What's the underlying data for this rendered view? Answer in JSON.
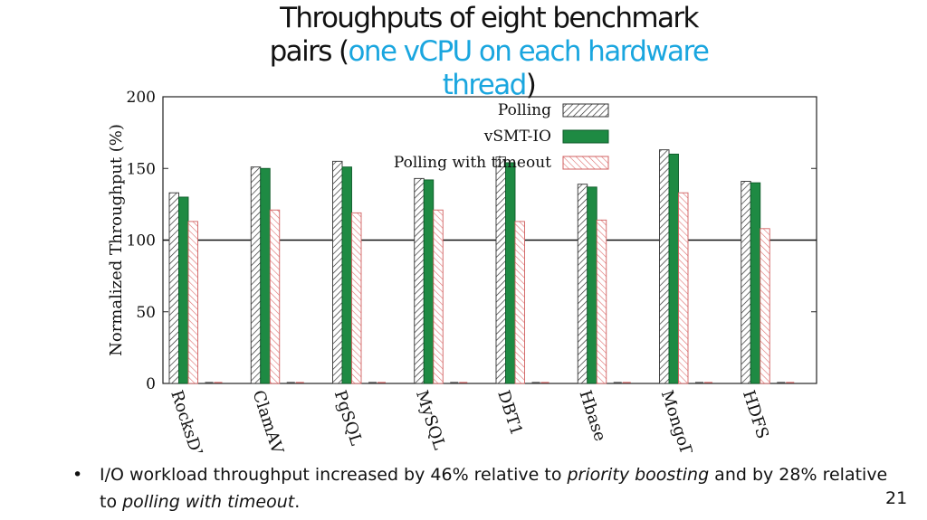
{
  "slide": {
    "title_line1": "Throughputs of eight benchmark",
    "title_line2_prefix": "pairs (",
    "title_highlight_a": "one vCPU on each hardware",
    "title_highlight_b": "thread",
    "title_suffix": ")",
    "highlight_color": "#1aa6df",
    "bullet_symbol": "•",
    "bullet_parts": [
      {
        "text": "I/O workload throughput increased by 46% relative to ",
        "italic": false
      },
      {
        "text": "priority boosting",
        "italic": true
      },
      {
        "text": " and by 28% relative to ",
        "italic": false
      },
      {
        "text": "polling with timeout",
        "italic": true
      },
      {
        "text": ".",
        "italic": false
      }
    ],
    "slide_number": "21"
  },
  "chart_data": {
    "type": "bar",
    "title": "",
    "xlabel": "",
    "ylabel": "Normalized Throughput (%)",
    "ylim": [
      0,
      200
    ],
    "yticks": [
      0,
      50,
      100,
      150,
      200
    ],
    "reference_line": 100,
    "legend_position": "top-right",
    "categories": [
      "RocksDB",
      "ClamAV",
      "PgSQL",
      "MySQL",
      "DBT1",
      "Hbase",
      "MongoDB",
      "HDFS"
    ],
    "series": [
      {
        "name": "Polling",
        "pattern": "hatch",
        "color": "#333333",
        "values": [
          133,
          151,
          155,
          143,
          158,
          139,
          163,
          141
        ]
      },
      {
        "name": "vSMT-IO",
        "pattern": "solid",
        "color": "#1e8a43",
        "values": [
          130,
          150,
          151,
          142,
          154,
          137,
          160,
          140
        ]
      },
      {
        "name": "Polling with timeout",
        "pattern": "hatch-red",
        "color": "#e07070",
        "values": [
          113,
          121,
          119,
          121,
          113,
          114,
          133,
          108
        ]
      }
    ]
  }
}
